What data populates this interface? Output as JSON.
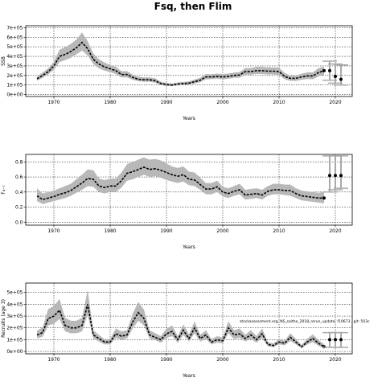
{
  "figure": {
    "title": "Fsq, then Flim",
    "note": "stockassessment.org, NS_saithe_2018_rerun_update, f10673 , git: 503c"
  },
  "chart_data": [
    {
      "type": "line",
      "xlabel": "Years",
      "ylabel": "SSB",
      "xlim": [
        1965,
        2023
      ],
      "ylim": [
        -20000,
        720000
      ],
      "x_ticks": [
        1970,
        1980,
        1990,
        2000,
        2010,
        2020
      ],
      "y_ticks": [
        0,
        100000,
        200000,
        300000,
        400000,
        500000,
        600000,
        700000
      ],
      "y_tick_labels": [
        "0e+00",
        "1e+05",
        "2e+05",
        "3e+05",
        "4e+05",
        "5e+05",
        "6e+05",
        "7e+05"
      ],
      "grid": true,
      "series": [
        {
          "x": [
            1967,
            1968,
            1969,
            1970,
            1971,
            1972,
            1973,
            1974,
            1975,
            1976,
            1977,
            1978,
            1979,
            1980,
            1981,
            1982,
            1983,
            1984,
            1985,
            1986,
            1987,
            1988,
            1989,
            1990,
            1991,
            1992,
            1993,
            1994,
            1995,
            1996,
            1997,
            1998,
            1999,
            2000,
            2001,
            2002,
            2003,
            2004,
            2005,
            2006,
            2007,
            2008,
            2009,
            2010,
            2011,
            2012,
            2013,
            2014,
            2015,
            2016,
            2017,
            2018
          ],
          "values": [
            165000,
            200000,
            240000,
            300000,
            400000,
            420000,
            450000,
            490000,
            545000,
            480000,
            370000,
            320000,
            290000,
            270000,
            250000,
            210000,
            210000,
            180000,
            160000,
            155000,
            155000,
            145000,
            115000,
            105000,
            100000,
            110000,
            115000,
            120000,
            135000,
            150000,
            185000,
            185000,
            190000,
            185000,
            190000,
            200000,
            205000,
            240000,
            240000,
            250000,
            250000,
            245000,
            245000,
            240000,
            190000,
            170000,
            170000,
            185000,
            195000,
            195000,
            230000,
            250000
          ],
          "lower": [
            145000,
            175000,
            210000,
            260000,
            340000,
            360000,
            385000,
            420000,
            460000,
            410000,
            320000,
            275000,
            250000,
            235000,
            215000,
            180000,
            180000,
            155000,
            140000,
            135000,
            135000,
            125000,
            100000,
            90000,
            88000,
            96000,
            100000,
            105000,
            115000,
            130000,
            160000,
            162000,
            165000,
            160000,
            165000,
            175000,
            178000,
            208000,
            208000,
            215000,
            215000,
            210000,
            210000,
            205000,
            160000,
            143000,
            143000,
            155000,
            163000,
            160000,
            190000,
            205000
          ],
          "upper": [
            190000,
            230000,
            275000,
            345000,
            470000,
            495000,
            530000,
            575000,
            650000,
            560000,
            430000,
            370000,
            335000,
            310000,
            290000,
            245000,
            245000,
            210000,
            185000,
            180000,
            180000,
            170000,
            135000,
            122000,
            115000,
            127000,
            133000,
            138000,
            158000,
            175000,
            215000,
            212000,
            220000,
            215000,
            220000,
            230000,
            237000,
            277000,
            277000,
            290000,
            290000,
            285000,
            285000,
            282000,
            225000,
            200000,
            200000,
            218000,
            232000,
            232000,
            275000,
            295000
          ]
        }
      ],
      "forecast": {
        "x": [
          2019,
          2020,
          2021
        ],
        "values": [
          250000,
          190000,
          160000
        ],
        "lower": [
          150000,
          120000,
          100000
        ],
        "upper": [
          350000,
          320000,
          310000
        ]
      }
    },
    {
      "type": "line",
      "xlabel": "Years",
      "ylabel": "F₄₋₇",
      "xlim": [
        1965,
        2023
      ],
      "ylim": [
        -0.04,
        0.9
      ],
      "x_ticks": [
        1970,
        1980,
        1990,
        2000,
        2010,
        2020
      ],
      "y_ticks": [
        0,
        0.2,
        0.4,
        0.6,
        0.8
      ],
      "y_tick_labels": [
        "0.0",
        "0.2",
        "0.4",
        "0.6",
        "0.8"
      ],
      "grid": true,
      "series": [
        {
          "x": [
            1967,
            1968,
            1969,
            1970,
            1971,
            1972,
            1973,
            1974,
            1975,
            1976,
            1977,
            1978,
            1979,
            1980,
            1981,
            1982,
            1983,
            1984,
            1985,
            1986,
            1987,
            1988,
            1989,
            1990,
            1991,
            1992,
            1993,
            1994,
            1995,
            1996,
            1997,
            1998,
            1999,
            2000,
            2001,
            2002,
            2003,
            2004,
            2005,
            2006,
            2007,
            2008,
            2009,
            2010,
            2011,
            2012,
            2013,
            2014,
            2015,
            2016,
            2017,
            2018
          ],
          "values": [
            0.35,
            0.3,
            0.32,
            0.34,
            0.37,
            0.39,
            0.42,
            0.47,
            0.52,
            0.58,
            0.57,
            0.48,
            0.46,
            0.48,
            0.48,
            0.55,
            0.65,
            0.67,
            0.7,
            0.73,
            0.7,
            0.71,
            0.69,
            0.66,
            0.63,
            0.61,
            0.63,
            0.57,
            0.56,
            0.5,
            0.44,
            0.44,
            0.47,
            0.4,
            0.38,
            0.41,
            0.43,
            0.36,
            0.37,
            0.38,
            0.36,
            0.41,
            0.43,
            0.43,
            0.42,
            0.42,
            0.38,
            0.35,
            0.34,
            0.33,
            0.32,
            0.32
          ],
          "lower": [
            0.28,
            0.24,
            0.26,
            0.28,
            0.3,
            0.32,
            0.35,
            0.39,
            0.43,
            0.48,
            0.47,
            0.4,
            0.38,
            0.4,
            0.4,
            0.46,
            0.55,
            0.57,
            0.6,
            0.63,
            0.6,
            0.61,
            0.59,
            0.56,
            0.54,
            0.52,
            0.54,
            0.49,
            0.48,
            0.43,
            0.37,
            0.37,
            0.4,
            0.34,
            0.32,
            0.35,
            0.37,
            0.3,
            0.31,
            0.32,
            0.3,
            0.35,
            0.37,
            0.37,
            0.36,
            0.35,
            0.32,
            0.29,
            0.28,
            0.27,
            0.26,
            0.25
          ],
          "upper": [
            0.45,
            0.38,
            0.4,
            0.42,
            0.45,
            0.48,
            0.51,
            0.57,
            0.63,
            0.7,
            0.69,
            0.58,
            0.56,
            0.58,
            0.58,
            0.66,
            0.77,
            0.8,
            0.83,
            0.86,
            0.83,
            0.84,
            0.82,
            0.78,
            0.74,
            0.72,
            0.74,
            0.67,
            0.66,
            0.59,
            0.52,
            0.52,
            0.55,
            0.47,
            0.45,
            0.48,
            0.51,
            0.43,
            0.44,
            0.45,
            0.43,
            0.48,
            0.51,
            0.51,
            0.5,
            0.5,
            0.45,
            0.42,
            0.41,
            0.4,
            0.39,
            0.4
          ]
        }
      ],
      "forecast": {
        "x": [
          2019,
          2020,
          2021
        ],
        "values": [
          0.62,
          0.62,
          0.62
        ],
        "lower": [
          0.4,
          0.43,
          0.45
        ],
        "upper": [
          0.88,
          0.88,
          0.88
        ]
      }
    },
    {
      "type": "line",
      "xlabel": "Years",
      "ylabel": "Recruits (age 3)",
      "xlim": [
        1965,
        2023
      ],
      "ylim": [
        -20000,
        580000
      ],
      "x_ticks": [
        1970,
        1980,
        1990,
        2000,
        2010,
        2020
      ],
      "y_ticks": [
        0,
        100000,
        200000,
        300000,
        400000,
        500000
      ],
      "y_tick_labels": [
        "0e+00",
        "1e+05",
        "2e+05",
        "3e+05",
        "4e+05",
        "5e+05"
      ],
      "grid": true,
      "series": [
        {
          "x": [
            1967,
            1968,
            1969,
            1970,
            1971,
            1972,
            1973,
            1974,
            1975,
            1976,
            1977,
            1978,
            1979,
            1980,
            1981,
            1982,
            1983,
            1984,
            1985,
            1986,
            1987,
            1988,
            1989,
            1990,
            1991,
            1992,
            1993,
            1994,
            1995,
            1996,
            1997,
            1998,
            1999,
            2000,
            2001,
            2002,
            2003,
            2004,
            2005,
            2006,
            2007,
            2008,
            2009,
            2010,
            2011,
            2012,
            2013,
            2014,
            2015,
            2016,
            2017,
            2018
          ],
          "values": [
            140000,
            160000,
            280000,
            300000,
            350000,
            220000,
            200000,
            200000,
            220000,
            400000,
            140000,
            110000,
            80000,
            80000,
            150000,
            130000,
            140000,
            250000,
            330000,
            280000,
            140000,
            120000,
            100000,
            150000,
            170000,
            100000,
            180000,
            110000,
            200000,
            110000,
            140000,
            80000,
            100000,
            90000,
            200000,
            140000,
            150000,
            110000,
            140000,
            100000,
            150000,
            60000,
            50000,
            80000,
            70000,
            120000,
            80000,
            40000,
            80000,
            110000,
            70000,
            40000
          ],
          "lower": [
            110000,
            125000,
            220000,
            235000,
            275000,
            170000,
            155000,
            155000,
            170000,
            310000,
            110000,
            85000,
            60000,
            60000,
            115000,
            100000,
            110000,
            195000,
            260000,
            220000,
            110000,
            95000,
            75000,
            115000,
            130000,
            75000,
            140000,
            85000,
            155000,
            85000,
            105000,
            60000,
            75000,
            68000,
            155000,
            105000,
            115000,
            85000,
            105000,
            75000,
            115000,
            45000,
            37000,
            60000,
            52000,
            90000,
            60000,
            28000,
            58000,
            80000,
            48000,
            25000
          ],
          "upper": [
            175000,
            205000,
            360000,
            385000,
            445000,
            285000,
            260000,
            260000,
            285000,
            520000,
            180000,
            140000,
            105000,
            105000,
            195000,
            170000,
            180000,
            320000,
            420000,
            355000,
            180000,
            155000,
            130000,
            195000,
            220000,
            130000,
            230000,
            145000,
            255000,
            140000,
            180000,
            105000,
            130000,
            118000,
            255000,
            180000,
            195000,
            142000,
            180000,
            130000,
            195000,
            80000,
            68000,
            105000,
            92000,
            155000,
            105000,
            55000,
            108000,
            145000,
            98000,
            62000
          ]
        }
      ],
      "forecast": {
        "x": [
          2019,
          2020,
          2021
        ],
        "values": [
          100000,
          100000,
          100000
        ],
        "lower": [
          35000,
          35000,
          35000
        ],
        "upper": [
          160000,
          160000,
          160000
        ]
      }
    }
  ]
}
